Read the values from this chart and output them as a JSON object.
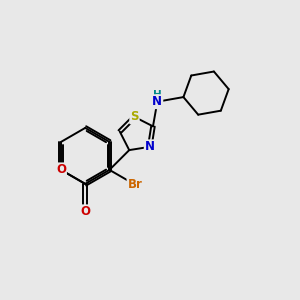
{
  "background_color": "#e8e8e8",
  "bond_color": "#000000",
  "atom_colors": {
    "Br": "#cc6600",
    "O": "#cc0000",
    "N": "#0000cc",
    "S": "#aaaa00",
    "NH": "#008888"
  },
  "lw": 1.4,
  "fs": 8.5
}
